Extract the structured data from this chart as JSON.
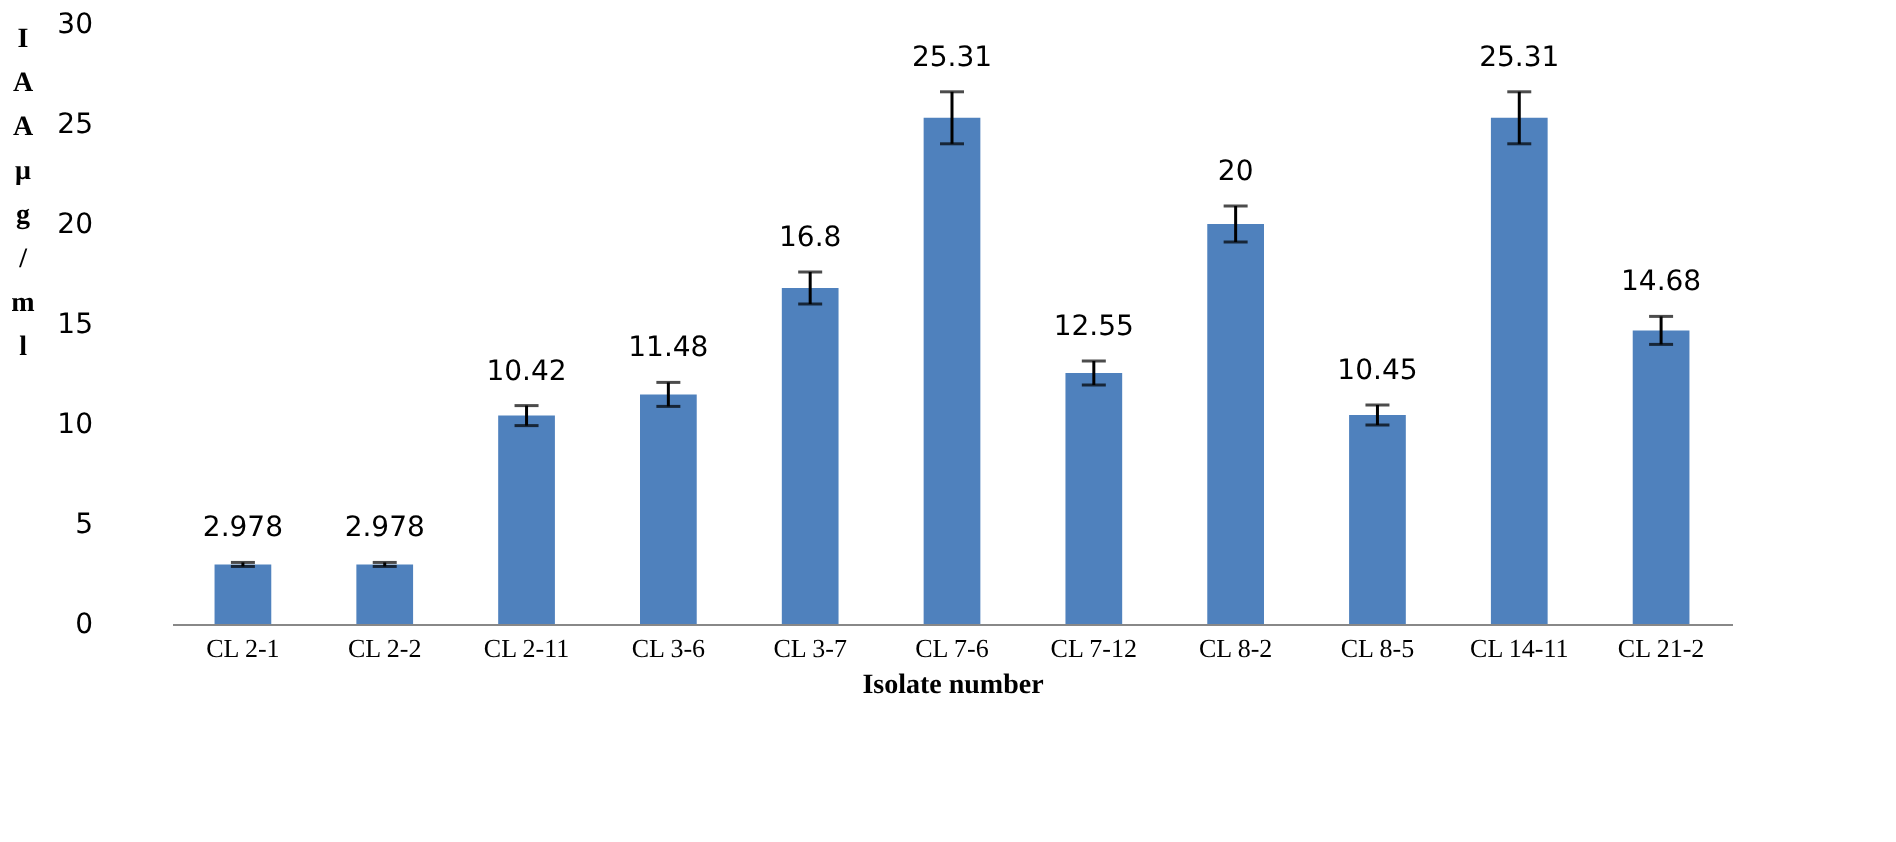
{
  "chart_data": {
    "type": "bar",
    "categories": [
      "CL 2-1",
      "CL 2-2",
      "CL 2-11",
      "CL 3-6",
      "CL 3-7",
      "CL 7-6",
      "CL 7-12",
      "CL 8-2",
      "CL 8-5",
      "CL 14-11",
      "CL 21-2"
    ],
    "values": [
      2.978,
      2.978,
      10.42,
      11.48,
      16.8,
      25.31,
      12.55,
      20,
      10.45,
      25.31,
      14.68
    ],
    "errors": [
      0.1,
      0.1,
      0.5,
      0.6,
      0.8,
      1.3,
      0.6,
      0.9,
      0.5,
      1.3,
      0.7
    ],
    "color": "#4f81bd",
    "xlabel": "Isolate number",
    "ylabel": "IAA μg/ml",
    "ylim": [
      0,
      30
    ],
    "yticks": [
      0,
      5,
      10,
      15,
      20,
      25,
      30
    ],
    "grid": false,
    "data_labels": true
  }
}
